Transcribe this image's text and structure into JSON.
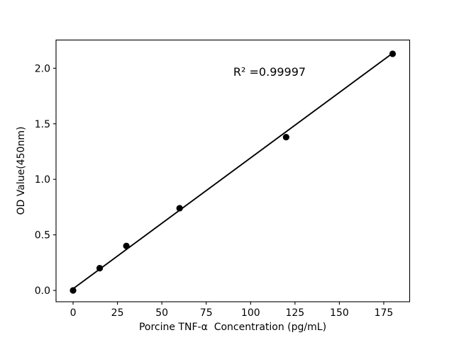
{
  "chart_data": {
    "type": "scatter",
    "title": "",
    "xlabel": "Porcine TNF-α  Concentration (pg/mL)",
    "ylabel": "OD Value(450nm)",
    "annotation": "R² =0.99997",
    "x": [
      0,
      15,
      30,
      60,
      120,
      180
    ],
    "y": [
      0.0,
      0.2,
      0.4,
      0.74,
      1.38,
      2.13
    ],
    "fit_line": {
      "x0": 0,
      "y0": 0.015,
      "x1": 180,
      "y1": 2.135
    },
    "xlim": [
      -9.6,
      189.6
    ],
    "ylim": [
      -0.102,
      2.254
    ],
    "xticks": [
      0,
      25,
      50,
      75,
      100,
      125,
      150,
      175
    ],
    "xtick_labels": [
      "0",
      "25",
      "50",
      "75",
      "100",
      "125",
      "150",
      "175"
    ],
    "yticks": [
      0,
      0.5,
      1.0,
      1.5,
      2.0
    ],
    "ytick_labels": [
      "0.0",
      "0.5",
      "1.0",
      "1.5",
      "2.0"
    ],
    "grid": false,
    "legend_position": "none",
    "colors": {
      "background": "#ffffff",
      "axes": "#000000",
      "marker": "#000000",
      "line": "#000000",
      "text": "#000000"
    }
  }
}
